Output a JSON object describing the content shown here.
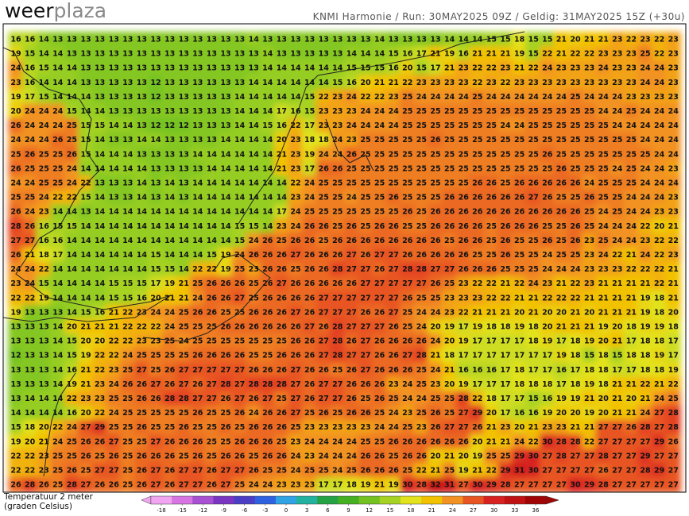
{
  "header": {
    "logo_dark": "weer",
    "logo_light": "plaza",
    "run_info": "KNMI Harmonie / Run: 30MAY2025 09Z / Geldig: 31MAY2025 15Z (+30u)"
  },
  "legend": {
    "title_line1": "Temperatuur 2 meter",
    "title_line2": "(graden Celsius)",
    "ticks": [
      -18,
      -15,
      -12,
      -9,
      -6,
      -3,
      0,
      3,
      6,
      9,
      12,
      15,
      18,
      21,
      24,
      27,
      30,
      33,
      36
    ],
    "colors": [
      "#f2a6f2",
      "#d775e2",
      "#a851d2",
      "#7a35c2",
      "#4a3fc4",
      "#2f62e0",
      "#2fa3e4",
      "#22b3a0",
      "#24a244",
      "#45b022",
      "#74c222",
      "#a6d224",
      "#e2e21e",
      "#f2c200",
      "#f29222",
      "#e85422",
      "#d82222",
      "#c01212",
      "#a00404"
    ]
  },
  "map": {
    "grid": [
      [
        16,
        16,
        14,
        13,
        13,
        13,
        13,
        13,
        13,
        13,
        13,
        13,
        13,
        13,
        13,
        13,
        13,
        14,
        13,
        13,
        13,
        13,
        13,
        13,
        13,
        13,
        14,
        13,
        13,
        13,
        13,
        14,
        14,
        14,
        15,
        15,
        18,
        15,
        15,
        21,
        20,
        21,
        21,
        23,
        22,
        23,
        22,
        23
      ],
      [
        19,
        15,
        14,
        14,
        13,
        13,
        13,
        13,
        13,
        13,
        13,
        13,
        13,
        13,
        13,
        13,
        13,
        13,
        14,
        13,
        13,
        13,
        13,
        13,
        14,
        14,
        14,
        15,
        16,
        17,
        21,
        19,
        16,
        21,
        21,
        21,
        19,
        15,
        22,
        21,
        22,
        22,
        23,
        23,
        23,
        25,
        22,
        23
      ],
      [
        24,
        16,
        15,
        14,
        14,
        13,
        13,
        13,
        13,
        13,
        13,
        13,
        13,
        13,
        13,
        13,
        13,
        13,
        14,
        14,
        14,
        14,
        14,
        14,
        15,
        15,
        15,
        16,
        20,
        15,
        17,
        21,
        23,
        22,
        22,
        23,
        21,
        22,
        24,
        23,
        23,
        23,
        24,
        23,
        23,
        24,
        24,
        23
      ],
      [
        23,
        16,
        14,
        14,
        14,
        13,
        13,
        13,
        13,
        13,
        12,
        13,
        13,
        13,
        13,
        13,
        13,
        14,
        14,
        14,
        14,
        14,
        14,
        15,
        16,
        20,
        21,
        21,
        22,
        23,
        23,
        23,
        23,
        22,
        23,
        22,
        23,
        23,
        23,
        23,
        23,
        23,
        23,
        23,
        23,
        24,
        24,
        23
      ],
      [
        19,
        17,
        15,
        14,
        14,
        14,
        13,
        13,
        13,
        13,
        12,
        13,
        13,
        13,
        13,
        13,
        14,
        14,
        14,
        14,
        14,
        15,
        22,
        23,
        24,
        22,
        22,
        23,
        25,
        24,
        24,
        24,
        24,
        25,
        24,
        24,
        24,
        24,
        24,
        24,
        25,
        24,
        24,
        24,
        23,
        23,
        23,
        23
      ],
      [
        20,
        24,
        24,
        24,
        15,
        14,
        14,
        13,
        13,
        13,
        13,
        13,
        13,
        13,
        13,
        13,
        14,
        14,
        14,
        17,
        16,
        15,
        23,
        23,
        23,
        24,
        24,
        24,
        25,
        25,
        25,
        25,
        25,
        25,
        25,
        25,
        25,
        25,
        25,
        25,
        25,
        25,
        24,
        24,
        25,
        24,
        24,
        24
      ],
      [
        26,
        24,
        24,
        24,
        25,
        15,
        15,
        14,
        14,
        13,
        12,
        12,
        12,
        13,
        13,
        13,
        14,
        14,
        15,
        16,
        22,
        17,
        23,
        23,
        24,
        24,
        24,
        24,
        25,
        25,
        25,
        25,
        25,
        25,
        25,
        24,
        24,
        25,
        25,
        25,
        25,
        25,
        25,
        24,
        24,
        24,
        24,
        24
      ],
      [
        24,
        24,
        24,
        26,
        25,
        15,
        14,
        13,
        13,
        14,
        14,
        13,
        13,
        13,
        13,
        14,
        14,
        14,
        14,
        20,
        23,
        18,
        18,
        24,
        23,
        25,
        25,
        25,
        25,
        25,
        26,
        25,
        25,
        25,
        25,
        25,
        25,
        25,
        25,
        25,
        25,
        25,
        25,
        25,
        25,
        24,
        24,
        24
      ],
      [
        25,
        26,
        25,
        25,
        26,
        15,
        14,
        14,
        14,
        13,
        13,
        13,
        13,
        14,
        14,
        14,
        14,
        14,
        14,
        21,
        23,
        19,
        24,
        24,
        26,
        25,
        25,
        25,
        25,
        25,
        25,
        25,
        25,
        25,
        25,
        25,
        25,
        25,
        26,
        25,
        25,
        25,
        25,
        25,
        25,
        25,
        24,
        24
      ],
      [
        26,
        25,
        25,
        25,
        24,
        14,
        14,
        14,
        14,
        14,
        13,
        13,
        13,
        13,
        14,
        14,
        14,
        14,
        14,
        21,
        23,
        17,
        26,
        26,
        25,
        25,
        25,
        25,
        25,
        25,
        25,
        25,
        25,
        25,
        25,
        25,
        25,
        25,
        25,
        26,
        25,
        25,
        25,
        24,
        25,
        24,
        24,
        23
      ],
      [
        24,
        24,
        25,
        25,
        24,
        22,
        13,
        13,
        13,
        14,
        13,
        14,
        13,
        14,
        14,
        14,
        14,
        14,
        14,
        14,
        22,
        24,
        25,
        25,
        25,
        25,
        25,
        25,
        25,
        25,
        25,
        25,
        25,
        26,
        26,
        25,
        26,
        26,
        26,
        26,
        26,
        24,
        25,
        25,
        25,
        24,
        24,
        24
      ],
      [
        25,
        25,
        24,
        22,
        22,
        15,
        14,
        13,
        13,
        14,
        13,
        14,
        13,
        14,
        14,
        14,
        14,
        14,
        14,
        14,
        23,
        24,
        25,
        25,
        24,
        25,
        25,
        26,
        25,
        25,
        25,
        26,
        26,
        26,
        26,
        26,
        26,
        27,
        26,
        25,
        25,
        26,
        25,
        25,
        24,
        24,
        24,
        23
      ],
      [
        26,
        24,
        23,
        14,
        14,
        13,
        14,
        14,
        14,
        14,
        14,
        14,
        14,
        14,
        14,
        14,
        14,
        14,
        14,
        17,
        24,
        25,
        25,
        25,
        25,
        25,
        25,
        25,
        26,
        25,
        26,
        26,
        26,
        26,
        26,
        26,
        26,
        26,
        26,
        26,
        26,
        25,
        24,
        25,
        24,
        24,
        23,
        23
      ],
      [
        28,
        26,
        16,
        15,
        15,
        14,
        14,
        14,
        14,
        14,
        14,
        14,
        14,
        14,
        14,
        14,
        15,
        15,
        14,
        23,
        24,
        26,
        26,
        25,
        26,
        25,
        26,
        26,
        25,
        25,
        26,
        26,
        26,
        26,
        25,
        26,
        26,
        26,
        25,
        25,
        26,
        25,
        24,
        24,
        24,
        22,
        20,
        21
      ],
      [
        27,
        27,
        16,
        16,
        14,
        14,
        14,
        14,
        14,
        14,
        14,
        14,
        14,
        14,
        14,
        14,
        15,
        24,
        26,
        25,
        26,
        26,
        25,
        26,
        26,
        26,
        26,
        26,
        26,
        26,
        26,
        25,
        26,
        26,
        25,
        26,
        25,
        25,
        26,
        25,
        26,
        23,
        25,
        24,
        24,
        23,
        22,
        22
      ],
      [
        26,
        21,
        18,
        17,
        14,
        14,
        14,
        14,
        14,
        14,
        15,
        14,
        14,
        14,
        15,
        19,
        24,
        26,
        26,
        26,
        27,
        26,
        26,
        26,
        27,
        26,
        27,
        27,
        26,
        26,
        26,
        26,
        26,
        25,
        25,
        26,
        25,
        25,
        24,
        25,
        25,
        23,
        24,
        22,
        21,
        24,
        22,
        23
      ],
      [
        24,
        24,
        22,
        14,
        14,
        14,
        14,
        14,
        14,
        14,
        15,
        15,
        14,
        22,
        22,
        19,
        25,
        23,
        26,
        26,
        25,
        26,
        26,
        28,
        27,
        27,
        26,
        27,
        28,
        28,
        27,
        27,
        26,
        26,
        26,
        25,
        25,
        25,
        24,
        24,
        24,
        23,
        23,
        23,
        22,
        22,
        22,
        21
      ],
      [
        23,
        24,
        15,
        14,
        14,
        14,
        14,
        15,
        15,
        15,
        17,
        19,
        21,
        25,
        26,
        26,
        26,
        25,
        26,
        27,
        26,
        26,
        26,
        26,
        26,
        27,
        27,
        27,
        27,
        27,
        26,
        25,
        23,
        22,
        22,
        21,
        22,
        24,
        23,
        21,
        22,
        23,
        21,
        21,
        21,
        21,
        22,
        21
      ],
      [
        22,
        22,
        19,
        14,
        14,
        14,
        14,
        15,
        15,
        16,
        20,
        21,
        21,
        24,
        26,
        26,
        27,
        25,
        26,
        26,
        26,
        26,
        27,
        27,
        27,
        27,
        27,
        27,
        26,
        25,
        25,
        23,
        23,
        23,
        22,
        22,
        21,
        21,
        22,
        22,
        22,
        21,
        21,
        21,
        21,
        19,
        18,
        21
      ],
      [
        19,
        13,
        13,
        13,
        14,
        15,
        16,
        21,
        22,
        23,
        24,
        24,
        25,
        26,
        26,
        25,
        25,
        26,
        26,
        26,
        27,
        26,
        27,
        27,
        27,
        26,
        26,
        27,
        25,
        24,
        24,
        23,
        22,
        21,
        21,
        21,
        20,
        21,
        20,
        20,
        21,
        20,
        21,
        21,
        21,
        19,
        18,
        20
      ],
      [
        13,
        13,
        13,
        14,
        20,
        21,
        21,
        21,
        22,
        22,
        22,
        24,
        25,
        25,
        25,
        26,
        26,
        26,
        26,
        26,
        26,
        27,
        26,
        28,
        27,
        27,
        27,
        26,
        25,
        24,
        20,
        19,
        17,
        19,
        18,
        18,
        19,
        18,
        20,
        21,
        21,
        21,
        19,
        20,
        18,
        19,
        19,
        18
      ],
      [
        13,
        13,
        13,
        14,
        15,
        20,
        20,
        22,
        22,
        23,
        23,
        25,
        24,
        25,
        25,
        25,
        25,
        25,
        25,
        25,
        26,
        26,
        27,
        28,
        26,
        27,
        26,
        26,
        26,
        26,
        24,
        20,
        19,
        17,
        17,
        17,
        17,
        18,
        19,
        17,
        18,
        19,
        20,
        21,
        17,
        18,
        18,
        17
      ],
      [
        12,
        13,
        13,
        14,
        15,
        19,
        22,
        22,
        24,
        25,
        25,
        25,
        25,
        26,
        26,
        26,
        26,
        25,
        25,
        26,
        26,
        26,
        27,
        28,
        27,
        27,
        26,
        26,
        27,
        28,
        21,
        18,
        17,
        17,
        17,
        17,
        17,
        17,
        17,
        19,
        18,
        15,
        18,
        15,
        18,
        18,
        19,
        17
      ],
      [
        13,
        13,
        13,
        14,
        16,
        21,
        22,
        23,
        25,
        27,
        25,
        26,
        27,
        27,
        27,
        27,
        27,
        26,
        26,
        26,
        27,
        26,
        26,
        25,
        26,
        27,
        26,
        26,
        26,
        25,
        24,
        21,
        16,
        16,
        16,
        17,
        18,
        17,
        17,
        16,
        17,
        18,
        18,
        17,
        17,
        18,
        18,
        19
      ],
      [
        13,
        13,
        13,
        14,
        19,
        21,
        23,
        24,
        26,
        26,
        27,
        26,
        27,
        26,
        27,
        28,
        27,
        28,
        28,
        28,
        27,
        26,
        27,
        27,
        26,
        26,
        26,
        23,
        24,
        25,
        23,
        20,
        19,
        17,
        17,
        17,
        18,
        18,
        18,
        17,
        18,
        19,
        18,
        21,
        21,
        22,
        21,
        22
      ],
      [
        13,
        14,
        14,
        14,
        22,
        23,
        23,
        25,
        25,
        26,
        26,
        28,
        28,
        27,
        27,
        26,
        27,
        26,
        27,
        25,
        27,
        26,
        27,
        27,
        26,
        25,
        26,
        25,
        24,
        24,
        25,
        25,
        28,
        22,
        18,
        17,
        17,
        15,
        16,
        19,
        19,
        21,
        20,
        21,
        20,
        21,
        24,
        25
      ],
      [
        14,
        14,
        14,
        14,
        16,
        20,
        22,
        24,
        25,
        25,
        25,
        25,
        25,
        26,
        25,
        25,
        26,
        24,
        26,
        26,
        27,
        25,
        26,
        25,
        26,
        26,
        25,
        24,
        23,
        25,
        26,
        25,
        27,
        29,
        20,
        17,
        16,
        16,
        19,
        20,
        20,
        19,
        20,
        21,
        21,
        24,
        27,
        28
      ],
      [
        15,
        18,
        20,
        22,
        24,
        27,
        29,
        25,
        25,
        26,
        25,
        25,
        26,
        25,
        25,
        26,
        25,
        26,
        26,
        26,
        25,
        23,
        23,
        23,
        23,
        23,
        24,
        24,
        25,
        23,
        26,
        27,
        27,
        26,
        21,
        23,
        20,
        21,
        23,
        23,
        21,
        21,
        27,
        27,
        26,
        28,
        27,
        28
      ],
      [
        19,
        20,
        21,
        24,
        25,
        26,
        26,
        27,
        25,
        25,
        27,
        26,
        26,
        26,
        25,
        25,
        26,
        26,
        26,
        25,
        23,
        24,
        24,
        24,
        24,
        25,
        25,
        26,
        26,
        26,
        26,
        26,
        26,
        20,
        21,
        21,
        24,
        22,
        30,
        28,
        28,
        22,
        27,
        27,
        27,
        27,
        29,
        26
      ],
      [
        22,
        22,
        23,
        25,
        25,
        26,
        25,
        26,
        25,
        26,
        26,
        26,
        25,
        26,
        25,
        26,
        26,
        25,
        26,
        26,
        24,
        23,
        24,
        24,
        24,
        26,
        26,
        25,
        26,
        26,
        20,
        21,
        20,
        19,
        25,
        25,
        29,
        30,
        27,
        28,
        27,
        27,
        28,
        27,
        27,
        29,
        27,
        27
      ],
      [
        22,
        22,
        23,
        25,
        26,
        25,
        27,
        27,
        25,
        26,
        27,
        26,
        27,
        27,
        26,
        27,
        27,
        26,
        25,
        25,
        24,
        25,
        25,
        24,
        25,
        26,
        26,
        26,
        25,
        22,
        21,
        25,
        19,
        21,
        22,
        29,
        31,
        30,
        27,
        27,
        27,
        27,
        26,
        27,
        27,
        28,
        29,
        27
      ],
      [
        26,
        28,
        26,
        25,
        28,
        27,
        26,
        26,
        25,
        26,
        27,
        26,
        27,
        27,
        26,
        27,
        25,
        24,
        24,
        23,
        23,
        23,
        17,
        17,
        18,
        19,
        21,
        19,
        30,
        28,
        32,
        31,
        27,
        30,
        29,
        28,
        27,
        27,
        27,
        27,
        30,
        29,
        28,
        27,
        27,
        27,
        27,
        27
      ]
    ]
  }
}
